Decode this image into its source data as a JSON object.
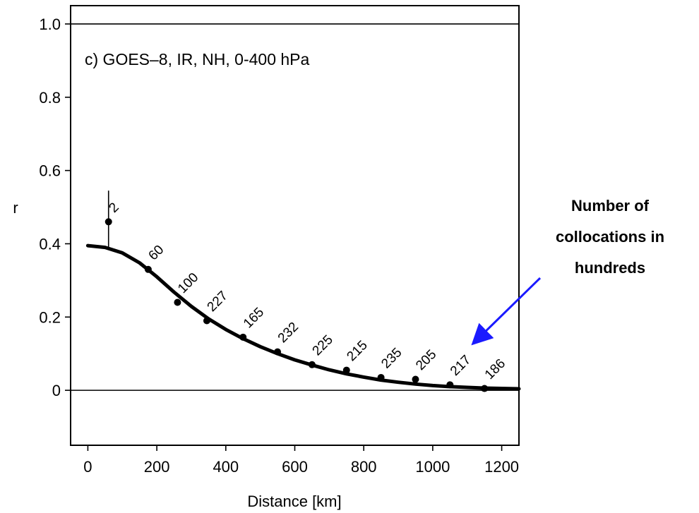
{
  "chart_data": {
    "type": "scatter",
    "title": "c) GOES–8, IR, NH, 0-400 hPa",
    "xlabel": "Distance [km]",
    "ylabel": "r",
    "xlim": [
      -50,
      1250
    ],
    "ylim": [
      -0.15,
      1.05
    ],
    "xticks": [
      0,
      200,
      400,
      600,
      800,
      1000,
      1200
    ],
    "xtick_labels": [
      "0",
      "200",
      "400",
      "600",
      "800",
      "1000",
      "1200"
    ],
    "yticks": [
      0,
      0.2,
      0.4,
      0.6,
      0.8,
      1.0
    ],
    "ytick_labels": [
      "0",
      "0.2",
      "0.4",
      "0.6",
      "0.8",
      "1.0"
    ],
    "grid": false,
    "reference_lines": [
      0,
      1.0
    ],
    "points": {
      "x": [
        60,
        175,
        260,
        345,
        450,
        550,
        650,
        750,
        850,
        950,
        1050,
        1150
      ],
      "y": [
        0.46,
        0.33,
        0.24,
        0.19,
        0.145,
        0.105,
        0.07,
        0.055,
        0.035,
        0.03,
        0.015,
        0.005
      ],
      "labels": [
        "2",
        "60",
        "100",
        "227",
        "165",
        "232",
        "225",
        "215",
        "235",
        "205",
        "217",
        "186"
      ]
    },
    "error_bar": {
      "x": 60,
      "y_low": 0.39,
      "y_high": 0.545
    },
    "fit_curve": {
      "x": [
        0,
        50,
        100,
        150,
        200,
        250,
        300,
        350,
        400,
        450,
        500,
        550,
        600,
        650,
        700,
        750,
        800,
        850,
        900,
        950,
        1000,
        1050,
        1100,
        1150,
        1200,
        1250
      ],
      "y": [
        0.395,
        0.39,
        0.375,
        0.348,
        0.31,
        0.268,
        0.229,
        0.195,
        0.166,
        0.141,
        0.119,
        0.1,
        0.083,
        0.069,
        0.056,
        0.045,
        0.036,
        0.028,
        0.022,
        0.017,
        0.013,
        0.01,
        0.008,
        0.006,
        0.005,
        0.004
      ]
    },
    "annotation": {
      "lines": [
        "Number of",
        "collocations in",
        "hundreds"
      ],
      "color": "#1a1aff"
    }
  }
}
